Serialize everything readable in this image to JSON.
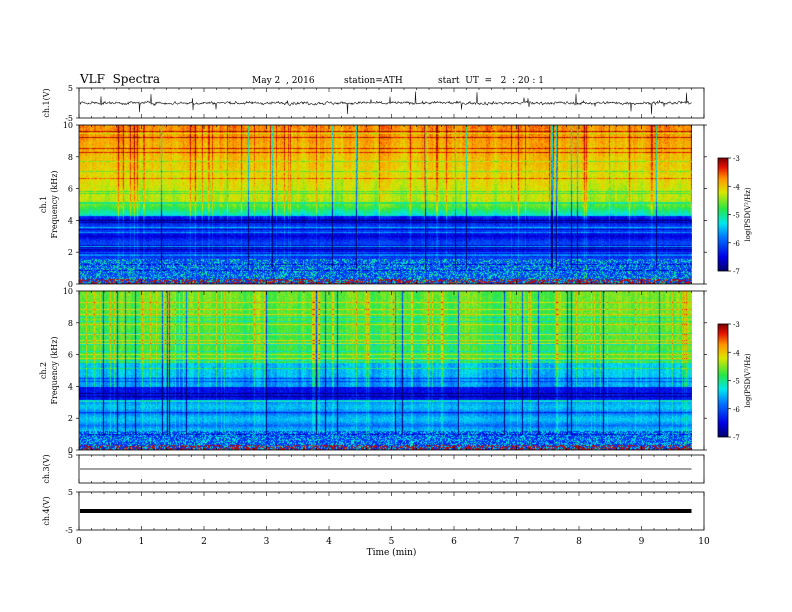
{
  "header": {
    "title": "VLF  Spectra",
    "date": "May 2  , 2016",
    "station": "station=ATH",
    "start": "start  UT  =   2  : 20 : 1"
  },
  "chart_data": [
    {
      "type": "line",
      "panel": "ch1-waveform",
      "ylabel": "ch.1(V)",
      "yticks": [
        "5",
        "-5"
      ],
      "ylim": [
        -5,
        5
      ],
      "xlim": [
        0,
        10
      ],
      "baseline": 0
    },
    {
      "type": "heatmap",
      "panel": "ch1-spectrogram",
      "ylabel": "ch.1",
      "ylabel2": "Frequency  (kHz)",
      "ylim": [
        0,
        10
      ],
      "yticks": [
        "0",
        "2",
        "4",
        "6",
        "8",
        "10"
      ],
      "xlim": [
        0,
        10
      ],
      "data_end": 9.8,
      "colorbar": {
        "label": "log(PSD(V²/Hz)",
        "range": [
          -7,
          -3
        ],
        "ticks": [
          "-3",
          "-4",
          "-5",
          "-6",
          "-7"
        ]
      }
    },
    {
      "type": "heatmap",
      "panel": "ch2-spectrogram",
      "ylabel": "ch.2",
      "ylabel2": "Frequency  (kHz)",
      "ylim": [
        0,
        10
      ],
      "yticks": [
        "0",
        "2",
        "4",
        "6",
        "8",
        "10"
      ],
      "xlim": [
        0,
        10
      ],
      "data_end": 9.8,
      "colorbar": {
        "label": "log(PSD(V²/Hz)",
        "range": [
          -7,
          -3
        ],
        "ticks": [
          "-3",
          "-4",
          "-5",
          "-6",
          "-7"
        ]
      }
    },
    {
      "type": "line",
      "panel": "ch3-waveform",
      "ylabel": "ch.3(V)",
      "yticks": [
        "5"
      ],
      "ylim": [
        -5,
        5
      ],
      "xlim": [
        0,
        10
      ],
      "baseline": 0
    },
    {
      "type": "line",
      "panel": "ch4-waveform",
      "ylabel": "ch.4(V)",
      "yticks": [
        "5",
        "-5"
      ],
      "ylim": [
        -5,
        5
      ],
      "xlim": [
        0,
        10
      ],
      "baseline": 0
    }
  ],
  "xaxis": {
    "label": "Time  (min)",
    "ticks": [
      "0",
      "1",
      "2",
      "3",
      "4",
      "5",
      "6",
      "7",
      "8",
      "9",
      "10"
    ]
  }
}
